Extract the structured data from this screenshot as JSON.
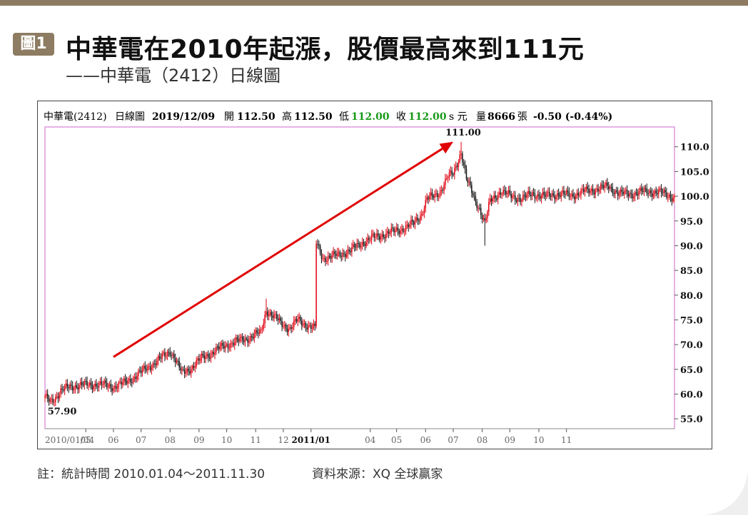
{
  "header": {
    "badge": "圖1",
    "title": "中華電在2010年起漲，股價最高來到111元",
    "subtitle": "——中華電（2412）日線圖"
  },
  "info_bar": {
    "stock": "中華電(2412)",
    "period": "日線圖",
    "date": "2019/12/09",
    "open_label": "開",
    "open": "112.50",
    "high_label": "高",
    "high": "112.50",
    "low_label": "低",
    "low": "112.00",
    "close_label": "收",
    "close": "112.00",
    "close_suffix": "s 元",
    "volume_label": "量",
    "volume": "8666",
    "volume_unit": "張",
    "change": "-0.50 (-0.44%)"
  },
  "footer": {
    "note": "註：統計時間 2010.01.04～2011.11.30",
    "source": "資料來源：XQ 全球贏家"
  },
  "colors": {
    "accent": "#8d7c62",
    "up": "#e0000f",
    "down": "#111111",
    "green": "#1a9a1a",
    "arrow": "#e00000",
    "plot_border": "#cc66cc"
  },
  "chart_data": {
    "type": "candlestick",
    "title": "中華電在2010年起漲，股價最高來到111元",
    "ylim": [
      53,
      114
    ],
    "yticks": [
      55,
      60,
      65,
      70,
      75,
      80,
      85,
      90,
      95,
      100,
      105,
      110
    ],
    "ytick_labels": [
      "55.0",
      "60.0",
      "65.0",
      "70.0",
      "75.0",
      "80.0",
      "85.0",
      "90.0",
      "95.0",
      "100.0",
      "105.0",
      "110.0"
    ],
    "xtick_labels": [
      "2010/01/04",
      "05",
      "06",
      "07",
      "08",
      "09",
      "10",
      "11",
      "12",
      "2011/01",
      "04",
      "05",
      "06",
      "07",
      "08",
      "09",
      "10",
      "11"
    ],
    "xtick_bold": [
      false,
      false,
      false,
      false,
      false,
      false,
      false,
      false,
      false,
      true,
      false,
      false,
      false,
      false,
      false,
      false,
      false,
      false
    ],
    "x_range": [
      0,
      478
    ],
    "xtick_positions": [
      0,
      31,
      52,
      73,
      95,
      117,
      138,
      160,
      181,
      202,
      247,
      267,
      289,
      310,
      332,
      353,
      375,
      396
    ],
    "price_path": [
      [
        0,
        59.2
      ],
      [
        4,
        58.6
      ],
      [
        8,
        59.4
      ],
      [
        12,
        60.5
      ],
      [
        16,
        61.2
      ],
      [
        20,
        61.6
      ],
      [
        28,
        61.8
      ],
      [
        40,
        62.0
      ],
      [
        52,
        61.5
      ],
      [
        60,
        62.2
      ],
      [
        68,
        63.5
      ],
      [
        76,
        65.0
      ],
      [
        84,
        66.5
      ],
      [
        92,
        68.0
      ],
      [
        95,
        68.8
      ],
      [
        98,
        67.5
      ],
      [
        104,
        64.2
      ],
      [
        112,
        65.5
      ],
      [
        120,
        67.5
      ],
      [
        128,
        68.5
      ],
      [
        136,
        69.8
      ],
      [
        148,
        70.8
      ],
      [
        156,
        71.5
      ],
      [
        164,
        72.5
      ],
      [
        168,
        77.0
      ],
      [
        172,
        76.0
      ],
      [
        180,
        74.2
      ],
      [
        186,
        73.2
      ],
      [
        192,
        75.0
      ],
      [
        200,
        73.8
      ],
      [
        205,
        73.2
      ],
      [
        206,
        90.5
      ],
      [
        211,
        87.5
      ],
      [
        218,
        87.8
      ],
      [
        224,
        88.3
      ],
      [
        232,
        89.0
      ],
      [
        240,
        90.5
      ],
      [
        248,
        91.5
      ],
      [
        256,
        92.2
      ],
      [
        264,
        92.8
      ],
      [
        272,
        93.5
      ],
      [
        280,
        94.5
      ],
      [
        286,
        96.5
      ],
      [
        290,
        99.5
      ],
      [
        296,
        100.0
      ],
      [
        300,
        101.0
      ],
      [
        306,
        104.0
      ],
      [
        310,
        104.5
      ],
      [
        316,
        109.0
      ],
      [
        320,
        103.5
      ],
      [
        326,
        99.5
      ],
      [
        330,
        97.5
      ],
      [
        334,
        94.5
      ],
      [
        338,
        99.0
      ],
      [
        346,
        101.0
      ],
      [
        354,
        100.0
      ],
      [
        362,
        99.5
      ],
      [
        370,
        100.5
      ],
      [
        380,
        100.0
      ],
      [
        390,
        100.5
      ],
      [
        400,
        100.2
      ],
      [
        410,
        101.0
      ],
      [
        420,
        101.5
      ],
      [
        428,
        102.0
      ],
      [
        436,
        100.5
      ],
      [
        446,
        100.5
      ],
      [
        456,
        101.0
      ],
      [
        466,
        100.8
      ],
      [
        478,
        99.8
      ]
    ],
    "spikes": [
      [
        95,
        69.5
      ],
      [
        168,
        79.3
      ],
      [
        316,
        111.0
      ],
      [
        334,
        90.0
      ]
    ],
    "annotations": [
      {
        "label": "111.00",
        "x": 316,
        "y": 111.0
      },
      {
        "label": "57.90",
        "x": 2,
        "y": 57.9
      }
    ],
    "trend_arrow": {
      "from": [
        52,
        67.5
      ],
      "to": [
        310,
        111.0
      ]
    }
  }
}
